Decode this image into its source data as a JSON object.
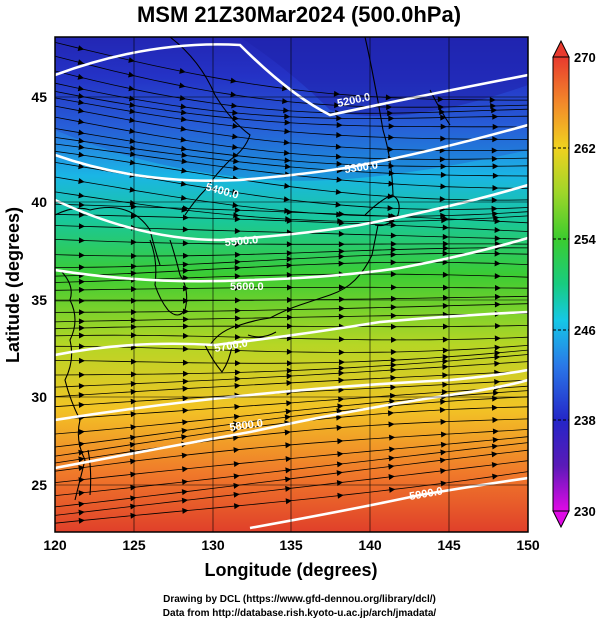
{
  "title": "MSM 21Z30Mar2024 (500.0hPa)",
  "axes": {
    "xlabel": "Longitude (degrees)",
    "ylabel": "Latitude  (degrees)",
    "xticks": [
      "120",
      "125",
      "130",
      "135",
      "140",
      "145",
      "150"
    ],
    "yticks": [
      "45",
      "40",
      "35",
      "30",
      "25"
    ]
  },
  "colorbar": {
    "ticks": [
      "270",
      "262",
      "254",
      "246",
      "238",
      "230"
    ],
    "min": 230,
    "max": 270
  },
  "contour_labels": [
    "5200.0",
    "5300.0",
    "5400.0",
    "5500.0",
    "5600.0",
    "5700.0",
    "5800.0",
    "5900.0"
  ],
  "credits": {
    "line1": "Drawing by DCL (https://www.gfd-dennou.org/library/dcl/)",
    "line2": "Data from http://database.rish.kyoto-u.ac.jp/arch/jmadata/"
  },
  "colors": {
    "contour": "#ffffff",
    "coast": "#000000",
    "frame": "#000000"
  }
}
